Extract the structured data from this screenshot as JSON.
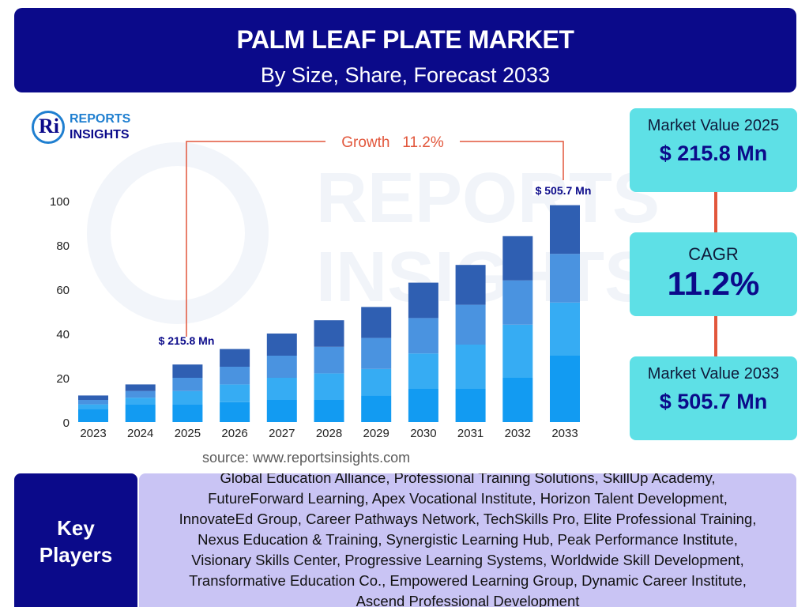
{
  "header": {
    "title": "PALM LEAF PLATE MARKET",
    "subtitle": "By Size, Share, Forecast 2033",
    "bg_color": "#0b0a8a"
  },
  "logo": {
    "mark": "Ri",
    "line1": "REPORTS",
    "line2": "INSIGHTS"
  },
  "watermark": {
    "line1": "REPORTS",
    "line2": "INSIGHTS"
  },
  "growth_label": "Growth   11.2%",
  "annotations": {
    "start": "$ 215.8 Mn",
    "end": "$ 505.7 Mn"
  },
  "chart_data": {
    "type": "bar",
    "stacked": true,
    "categories": [
      "2023",
      "2024",
      "2025",
      "2026",
      "2027",
      "2028",
      "2029",
      "2030",
      "2031",
      "2032",
      "2033"
    ],
    "series": [
      {
        "color": "#129bf2",
        "values": [
          6,
          8,
          8,
          9,
          10,
          10,
          12,
          15,
          15,
          20,
          30
        ]
      },
      {
        "color": "#36acf3",
        "values": [
          2,
          3,
          6,
          8,
          10,
          12,
          12,
          16,
          20,
          24,
          24
        ]
      },
      {
        "color": "#4a93e0",
        "values": [
          2,
          3,
          6,
          8,
          10,
          12,
          14,
          16,
          18,
          20,
          22
        ]
      },
      {
        "color": "#2f5fb2",
        "values": [
          2,
          3,
          6,
          8,
          10,
          12,
          14,
          16,
          18,
          20,
          22
        ]
      }
    ],
    "yticks": [
      0,
      20,
      40,
      60,
      80,
      100
    ],
    "ylim": [
      0,
      100
    ],
    "grid": false,
    "legend": false
  },
  "cards": {
    "value_2025": {
      "label": "Market Value 2025",
      "value": "$ 215.8 Mn"
    },
    "cagr": {
      "label": "CAGR",
      "value": "11.2%"
    },
    "value_2033": {
      "label": "Market Value 2033",
      "value": "$ 505.7 Mn"
    },
    "bg_color": "#5ee0e6"
  },
  "source": "source: www.reportsinsights.com",
  "key_players": {
    "label_line1": "Key",
    "label_line2": "Players",
    "lines": [
      "Global Education Alliance, Professional Training Solutions, SkillUp Academy,",
      "FutureForward Learning, Apex Vocational Institute, Horizon Talent Development,",
      "InnovateEd Group, Career Pathways Network, TechSkills Pro, Elite Professional Training,",
      "Nexus Education & Training, Synergistic Learning Hub, Peak Performance Institute,",
      "Visionary Skills Center, Progressive Learning Systems, Worldwide Skill Development,",
      "Transformative Education Co., Empowered Learning Group, Dynamic Career Institute,",
      "Ascend Professional Development"
    ]
  }
}
